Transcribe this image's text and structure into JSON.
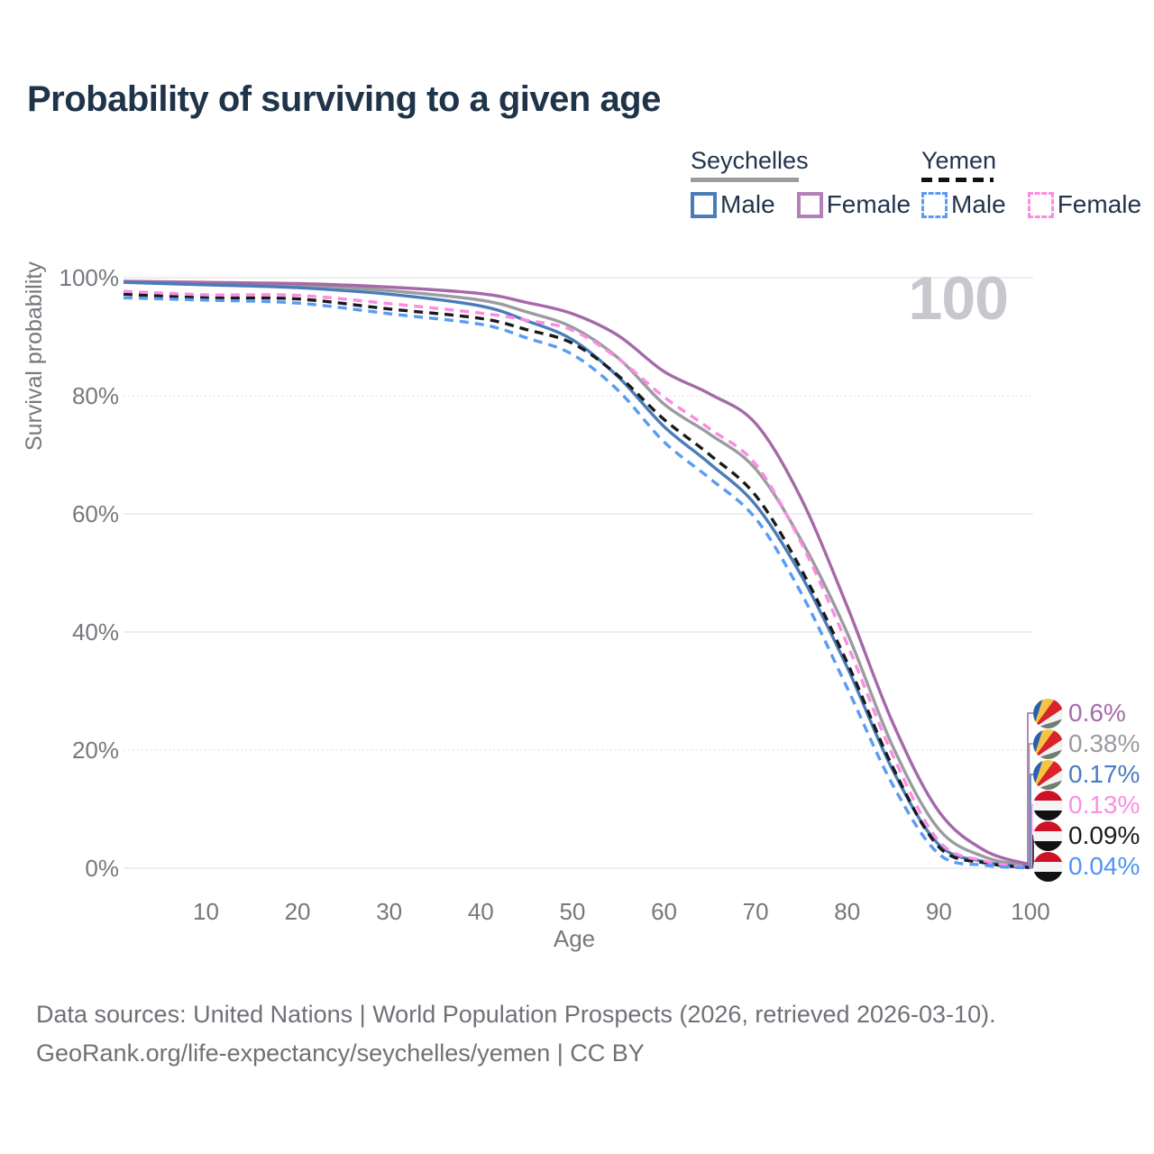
{
  "title": "Probability of surviving to a given age",
  "watermark": "100",
  "legend": {
    "groups": [
      {
        "country": "Seychelles",
        "line_style": "solid",
        "underline_color": "#9a9ca0",
        "items": [
          {
            "label": "Male",
            "color": "#4a7cb9"
          },
          {
            "label": "Female",
            "color": "#a569a8"
          }
        ]
      },
      {
        "country": "Yemen",
        "line_style": "dashed",
        "underline_color": "#111111",
        "items": [
          {
            "label": "Male",
            "color": "#5a9bf3"
          },
          {
            "label": "Female",
            "color": "#fa8ce2"
          }
        ]
      }
    ]
  },
  "chart_data": {
    "type": "line",
    "title": "Probability of surviving to a given age",
    "xlabel": "Age",
    "ylabel": "Survival probability",
    "xlim": [
      1,
      100
    ],
    "ylim": [
      0,
      100
    ],
    "grid": true,
    "legend_position": "top-right",
    "xticks": [
      10,
      20,
      30,
      40,
      50,
      60,
      70,
      80,
      90,
      100
    ],
    "yticks": [
      {
        "v": 100,
        "label": "100%"
      },
      {
        "v": 80,
        "label": "80%"
      },
      {
        "v": 60,
        "label": "60%"
      },
      {
        "v": 40,
        "label": "40%"
      },
      {
        "v": 20,
        "label": "20%"
      },
      {
        "v": 0,
        "label": "0%"
      }
    ],
    "x": [
      1,
      10,
      20,
      30,
      40,
      45,
      50,
      55,
      60,
      65,
      70,
      75,
      80,
      85,
      90,
      95,
      100
    ],
    "series": [
      {
        "name": "Seychelles Female",
        "country": "Seychelles",
        "sex": "Female",
        "color": "#a569a8",
        "dashed": false,
        "flag": "seychelles",
        "end_label": "0.6%",
        "end_label_color": "#a66bab",
        "values": [
          99.4,
          99.2,
          99.0,
          98.4,
          97.3,
          95.8,
          93.9,
          90.2,
          84.1,
          80.3,
          75.3,
          62.5,
          44.3,
          24.5,
          9.6,
          3.0,
          0.6
        ]
      },
      {
        "name": "Seychelles",
        "country": "Seychelles",
        "sex": "Both",
        "color": "#9a9ca0",
        "dashed": false,
        "flag": "seychelles",
        "end_label": "0.38%",
        "end_label_color": "#9b9ba1",
        "values": [
          99.3,
          99.0,
          98.8,
          97.8,
          96.2,
          94.2,
          91.6,
          86.4,
          78.6,
          73.5,
          67.6,
          55.5,
          39.8,
          20.5,
          6.6,
          1.9,
          0.38
        ]
      },
      {
        "name": "Seychelles Male",
        "country": "Seychelles",
        "sex": "Male",
        "color": "#4a7cb9",
        "dashed": false,
        "flag": "seychelles",
        "end_label": "0.17%",
        "end_label_color": "#4a7cc0",
        "values": [
          99.2,
          98.8,
          98.3,
          97.2,
          95.2,
          92.7,
          89.5,
          83.2,
          74.8,
          68.5,
          61.5,
          49.5,
          34.0,
          16.5,
          4.0,
          1.1,
          0.17
        ]
      },
      {
        "name": "Yemen Female",
        "country": "Yemen",
        "sex": "Female",
        "color": "#fa8ce2",
        "dashed": true,
        "flag": "yemen",
        "end_label": "0.13%",
        "end_label_color": "#fb8fe0",
        "values": [
          97.7,
          97.1,
          97.0,
          95.6,
          94.0,
          92.8,
          91.1,
          86.3,
          79.8,
          74.4,
          68.4,
          55.0,
          37.9,
          19.0,
          4.6,
          1.2,
          0.13
        ]
      },
      {
        "name": "Yemen",
        "country": "Yemen",
        "sex": "Both",
        "color": "#1a1a1a",
        "dashed": true,
        "flag": "yemen",
        "end_label": "0.09%",
        "end_label_color": "#1c1c1c",
        "values": [
          97.2,
          96.6,
          96.4,
          94.7,
          93.1,
          91.2,
          88.9,
          83.4,
          76.0,
          70.0,
          63.1,
          50.5,
          34.8,
          17.0,
          3.6,
          0.9,
          0.09
        ]
      },
      {
        "name": "Yemen Male",
        "country": "Yemen",
        "sex": "Male",
        "color": "#5a9bf3",
        "dashed": true,
        "flag": "yemen",
        "end_label": "0.04%",
        "end_label_color": "#4d94f5",
        "values": [
          96.6,
          96.2,
          95.7,
          93.9,
          92.1,
          89.8,
          87.0,
          80.9,
          72.2,
          66.0,
          59.2,
          46.5,
          30.5,
          14.0,
          2.4,
          0.5,
          0.04
        ]
      }
    ]
  },
  "footer": {
    "line1": "Data sources: United Nations | World Population Prospects (2026, retrieved 2026-03-10).",
    "line2": "GeoRank.org/life-expectancy/seychelles/yemen | CC BY"
  }
}
